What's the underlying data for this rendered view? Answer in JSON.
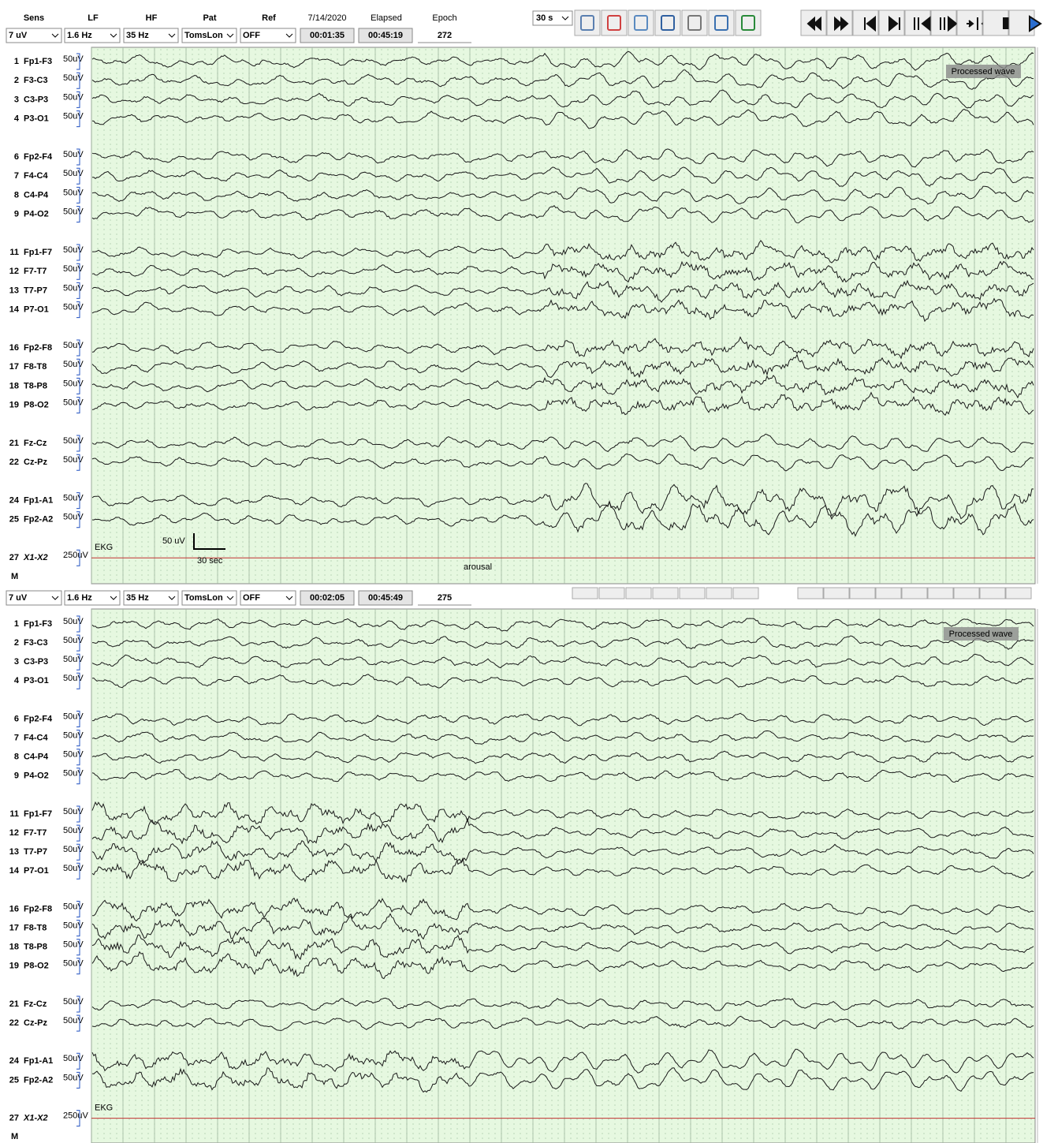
{
  "panels": [
    {
      "headers": [
        "Sens",
        "LF",
        "HF",
        "Pat",
        "Ref",
        "7/14/2020",
        "Elapsed",
        "Epoch"
      ],
      "controls": [
        "7 uV",
        "1.6 Hz",
        "35 Hz",
        "TomsLon",
        "OFF",
        "00:01:35",
        "00:45:19",
        "272"
      ],
      "page_length": "30 s",
      "channels": [
        {
          "number": 1,
          "name": "Fp1-F3",
          "scale": "50uV"
        },
        {
          "number": 2,
          "name": "F3-C3",
          "scale": "50uV"
        },
        {
          "number": 3,
          "name": "C3-P3",
          "scale": "50uV"
        },
        {
          "number": 4,
          "name": "P3-O1",
          "scale": "50uV"
        },
        {
          "number": 6,
          "name": "Fp2-F4",
          "scale": "50uV"
        },
        {
          "number": 7,
          "name": "F4-C4",
          "scale": "50uV"
        },
        {
          "number": 8,
          "name": "C4-P4",
          "scale": "50uV"
        },
        {
          "number": 9,
          "name": "P4-O2",
          "scale": "50uV"
        },
        {
          "number": 11,
          "name": "Fp1-F7",
          "scale": "50uV"
        },
        {
          "number": 12,
          "name": "F7-T7",
          "scale": "50uV"
        },
        {
          "number": 13,
          "name": "T7-P7",
          "scale": "50uV"
        },
        {
          "number": 14,
          "name": "P7-O1",
          "scale": "50uV"
        },
        {
          "number": 16,
          "name": "Fp2-F8",
          "scale": "50uV"
        },
        {
          "number": 17,
          "name": "F8-T8",
          "scale": "50uV"
        },
        {
          "number": 18,
          "name": "T8-P8",
          "scale": "50uV"
        },
        {
          "number": 19,
          "name": "P8-O2",
          "scale": "50uV"
        },
        {
          "number": 21,
          "name": "Fz-Cz",
          "scale": "50uV"
        },
        {
          "number": 22,
          "name": "Cz-Pz",
          "scale": "50uV"
        },
        {
          "number": 24,
          "name": "Fp1-A1",
          "scale": "50uV"
        },
        {
          "number": 25,
          "name": "Fp2-A2",
          "scale": "50uV"
        },
        {
          "number": 27,
          "name": "X1-X2",
          "scale": "250uV"
        }
      ],
      "marker": "M",
      "ekg_label": "EKG",
      "scale_bar": {
        "amplitude": "50 uV",
        "time": "30 sec"
      },
      "annotation": "arousal",
      "overlay": "Processed wave"
    },
    {
      "controls": [
        "7 uV",
        "1.6 Hz",
        "35 Hz",
        "TomsLon",
        "OFF",
        "00:02:05",
        "00:45:49",
        "275"
      ],
      "channels": [
        {
          "number": 1,
          "name": "Fp1-F3",
          "scale": "50uV"
        },
        {
          "number": 2,
          "name": "F3-C3",
          "scale": "50uV"
        },
        {
          "number": 3,
          "name": "C3-P3",
          "scale": "50uV"
        },
        {
          "number": 4,
          "name": "P3-O1",
          "scale": "50uV"
        },
        {
          "number": 6,
          "name": "Fp2-F4",
          "scale": "50uV"
        },
        {
          "number": 7,
          "name": "F4-C4",
          "scale": "50uV"
        },
        {
          "number": 8,
          "name": "C4-P4",
          "scale": "50uV"
        },
        {
          "number": 9,
          "name": "P4-O2",
          "scale": "50uV"
        },
        {
          "number": 11,
          "name": "Fp1-F7",
          "scale": "50uV"
        },
        {
          "number": 12,
          "name": "F7-T7",
          "scale": "50uV"
        },
        {
          "number": 13,
          "name": "T7-P7",
          "scale": "50uV"
        },
        {
          "number": 14,
          "name": "P7-O1",
          "scale": "50uV"
        },
        {
          "number": 16,
          "name": "Fp2-F8",
          "scale": "50uV"
        },
        {
          "number": 17,
          "name": "F8-T8",
          "scale": "50uV"
        },
        {
          "number": 18,
          "name": "T8-P8",
          "scale": "50uV"
        },
        {
          "number": 19,
          "name": "P8-O2",
          "scale": "50uV"
        },
        {
          "number": 21,
          "name": "Fz-Cz",
          "scale": "50uV"
        },
        {
          "number": 22,
          "name": "Cz-Pz",
          "scale": "50uV"
        },
        {
          "number": 24,
          "name": "Fp1-A1",
          "scale": "50uV"
        },
        {
          "number": 25,
          "name": "Fp2-A2",
          "scale": "50uV"
        },
        {
          "number": 27,
          "name": "X1-X2",
          "scale": "250uV"
        }
      ],
      "marker": "M",
      "ekg_label": "EKG",
      "overlay": "Processed wave"
    }
  ]
}
